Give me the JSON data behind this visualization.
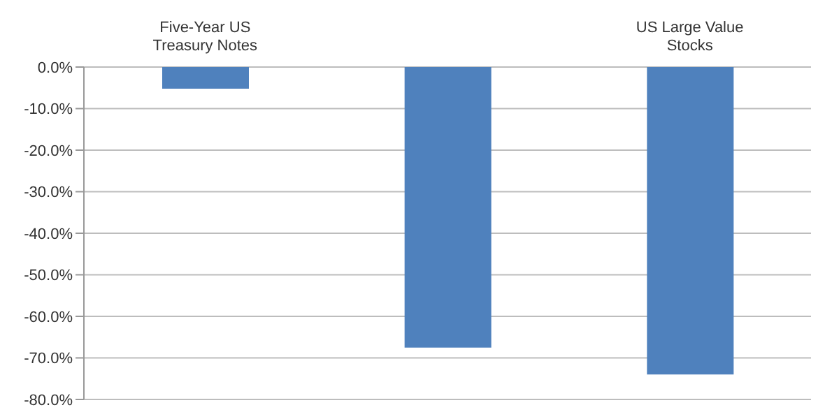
{
  "chart_data": {
    "type": "bar",
    "categories": [
      "Five-Year US Treasury Notes",
      null,
      "US Large Value Stocks"
    ],
    "values": [
      -5.2,
      -67.5,
      -74
    ],
    "color": "#4f81bd",
    "ylim": [
      -80,
      0
    ],
    "yticks": [
      {
        "value": 0,
        "label": "0.0%"
      },
      {
        "value": -10,
        "label": "-10.0%"
      },
      {
        "value": -20,
        "label": "-20.0%"
      },
      {
        "value": -30,
        "label": "-30.0%"
      },
      {
        "value": -40,
        "label": "-40.0%"
      },
      {
        "value": -50,
        "label": "-50.0%"
      },
      {
        "value": -60,
        "label": "-60.0%"
      },
      {
        "value": -70,
        "label": "-70.0%"
      },
      {
        "value": -80,
        "label": "-80.0%"
      }
    ],
    "grid": "y"
  }
}
